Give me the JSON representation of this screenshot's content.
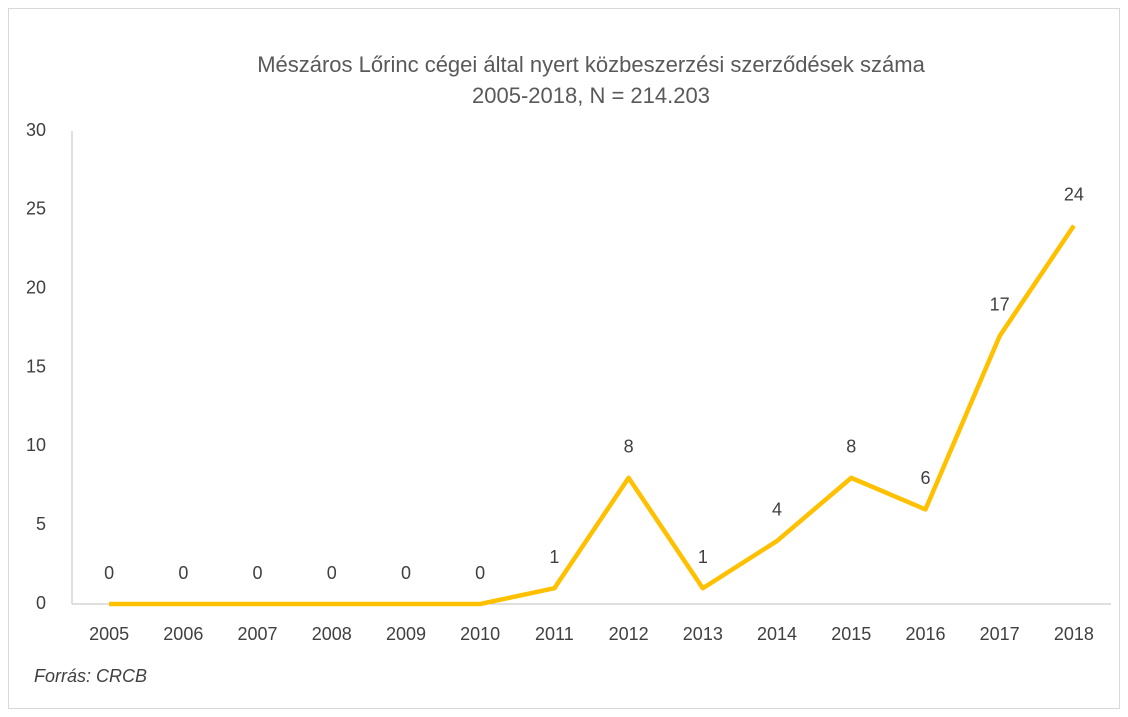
{
  "chart_data": {
    "type": "line",
    "title": "Mészáros Lőrinc cégei által nyert közbeszerzési szerződések száma",
    "subtitle": "2005-2018, N = 214.203",
    "categories": [
      "2005",
      "2006",
      "2007",
      "2008",
      "2009",
      "2010",
      "2011",
      "2012",
      "2013",
      "2014",
      "2015",
      "2016",
      "2017",
      "2018"
    ],
    "values": [
      0,
      0,
      0,
      0,
      0,
      0,
      1,
      8,
      1,
      4,
      8,
      6,
      17,
      24
    ],
    "color": "#FFC000",
    "ylim": [
      0,
      30
    ],
    "yticks": [
      0,
      5,
      10,
      15,
      20,
      25,
      30
    ],
    "grid": false,
    "note": "Forrás: CRCB"
  }
}
